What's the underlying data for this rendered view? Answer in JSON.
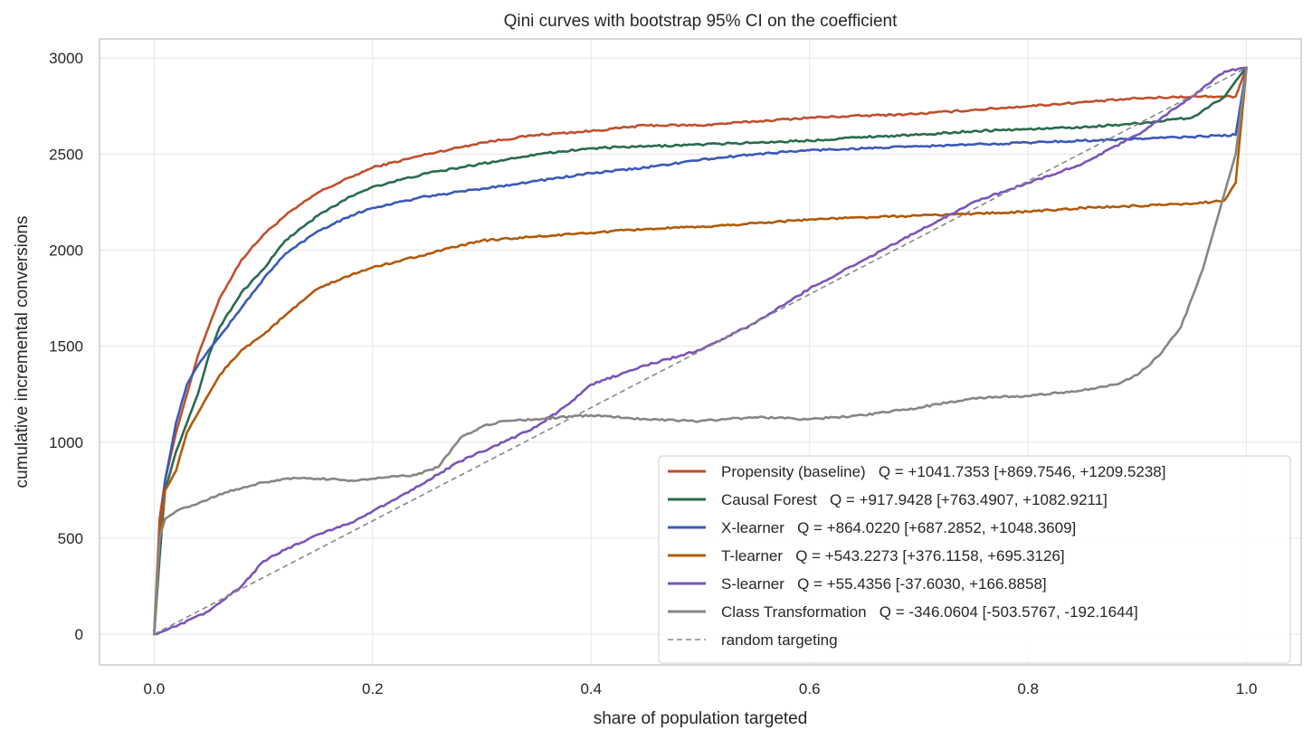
{
  "chart_data": {
    "type": "line",
    "title": "Qini curves with bootstrap 95% CI on the coefficient",
    "xlabel": "share of population targeted",
    "ylabel": "cumulative incremental conversions",
    "xlim": [
      -0.05,
      1.05
    ],
    "ylim": [
      -160,
      3100
    ],
    "xticks": [
      0.0,
      0.2,
      0.4,
      0.6,
      0.8,
      1.0
    ],
    "xtick_labels": [
      "0.0",
      "0.2",
      "0.4",
      "0.6",
      "0.8",
      "1.0"
    ],
    "yticks": [
      0,
      500,
      1000,
      1500,
      2000,
      2500,
      3000
    ],
    "ytick_labels": [
      "0",
      "500",
      "1000",
      "1500",
      "2000",
      "2500",
      "3000"
    ],
    "grid": true,
    "legend_position": "lower-right",
    "series": [
      {
        "name": "Propensity (baseline)   Q = +1041.7353 [+869.7546, +1209.5238]",
        "color": "#c0502d",
        "style": "solid",
        "x": [
          0,
          0.005,
          0.01,
          0.02,
          0.03,
          0.04,
          0.05,
          0.06,
          0.08,
          0.1,
          0.12,
          0.15,
          0.18,
          0.2,
          0.25,
          0.3,
          0.35,
          0.4,
          0.45,
          0.5,
          0.55,
          0.6,
          0.65,
          0.7,
          0.75,
          0.8,
          0.85,
          0.9,
          0.95,
          0.99,
          1.0
        ],
        "y": [
          0,
          600,
          800,
          1050,
          1250,
          1450,
          1600,
          1750,
          1950,
          2080,
          2180,
          2300,
          2380,
          2430,
          2500,
          2560,
          2600,
          2620,
          2650,
          2650,
          2670,
          2690,
          2700,
          2710,
          2730,
          2750,
          2770,
          2790,
          2800,
          2800,
          2950
        ]
      },
      {
        "name": "Causal Forest   Q = +917.9428 [+763.4907, +1082.9211]",
        "color": "#2a6b4e",
        "style": "solid",
        "x": [
          0,
          0.005,
          0.01,
          0.02,
          0.03,
          0.04,
          0.05,
          0.06,
          0.08,
          0.1,
          0.12,
          0.15,
          0.18,
          0.2,
          0.25,
          0.3,
          0.35,
          0.4,
          0.45,
          0.5,
          0.55,
          0.6,
          0.65,
          0.7,
          0.75,
          0.8,
          0.85,
          0.9,
          0.95,
          0.98,
          0.99,
          1.0
        ],
        "y": [
          0,
          400,
          750,
          950,
          1100,
          1250,
          1450,
          1600,
          1780,
          1900,
          2050,
          2180,
          2280,
          2330,
          2400,
          2450,
          2500,
          2530,
          2540,
          2550,
          2560,
          2570,
          2590,
          2600,
          2620,
          2630,
          2640,
          2660,
          2690,
          2800,
          2880,
          2950
        ]
      },
      {
        "name": "X-learner   Q = +864.0220 [+687.2852, +1048.3609]",
        "color": "#3a5ab8",
        "style": "solid",
        "x": [
          0,
          0.005,
          0.01,
          0.02,
          0.03,
          0.04,
          0.05,
          0.06,
          0.08,
          0.1,
          0.12,
          0.15,
          0.18,
          0.2,
          0.25,
          0.3,
          0.35,
          0.4,
          0.45,
          0.5,
          0.55,
          0.6,
          0.65,
          0.7,
          0.75,
          0.8,
          0.85,
          0.9,
          0.95,
          0.99,
          1.0
        ],
        "y": [
          0,
          500,
          800,
          1100,
          1300,
          1400,
          1480,
          1550,
          1700,
          1850,
          1980,
          2100,
          2180,
          2220,
          2280,
          2320,
          2360,
          2400,
          2430,
          2470,
          2500,
          2520,
          2530,
          2540,
          2550,
          2560,
          2570,
          2580,
          2590,
          2600,
          2950
        ]
      },
      {
        "name": "T-learner   Q = +543.2273 [+376.1158, +695.3126]",
        "color": "#b05a0a",
        "style": "solid",
        "x": [
          0,
          0.005,
          0.01,
          0.02,
          0.03,
          0.04,
          0.05,
          0.06,
          0.08,
          0.1,
          0.12,
          0.15,
          0.18,
          0.2,
          0.25,
          0.3,
          0.35,
          0.4,
          0.45,
          0.5,
          0.55,
          0.6,
          0.65,
          0.7,
          0.75,
          0.8,
          0.85,
          0.9,
          0.95,
          0.98,
          0.99,
          1.0
        ],
        "y": [
          0,
          500,
          750,
          850,
          1050,
          1150,
          1250,
          1350,
          1480,
          1560,
          1660,
          1800,
          1870,
          1910,
          1980,
          2050,
          2070,
          2090,
          2110,
          2120,
          2140,
          2160,
          2170,
          2180,
          2190,
          2200,
          2220,
          2230,
          2240,
          2260,
          2350,
          2950
        ]
      },
      {
        "name": "S-learner   Q = +55.4356 [-37.6030, +166.8858]",
        "color": "#7a55b8",
        "style": "solid",
        "x": [
          0,
          0.02,
          0.05,
          0.08,
          0.1,
          0.12,
          0.15,
          0.18,
          0.2,
          0.22,
          0.25,
          0.28,
          0.3,
          0.32,
          0.35,
          0.38,
          0.4,
          0.45,
          0.5,
          0.55,
          0.6,
          0.65,
          0.7,
          0.75,
          0.8,
          0.85,
          0.9,
          0.95,
          0.98,
          1.0
        ],
        "y": [
          0,
          40,
          120,
          250,
          380,
          440,
          520,
          580,
          640,
          700,
          800,
          900,
          950,
          1000,
          1080,
          1200,
          1300,
          1400,
          1480,
          1620,
          1800,
          1950,
          2100,
          2250,
          2350,
          2450,
          2600,
          2800,
          2930,
          2950
        ]
      },
      {
        "name": "Class Transformation   Q = -346.0604 [-503.5767, -192.1644]",
        "color": "#898682",
        "style": "solid",
        "x": [
          0,
          0.005,
          0.01,
          0.02,
          0.04,
          0.06,
          0.08,
          0.1,
          0.12,
          0.15,
          0.18,
          0.2,
          0.24,
          0.26,
          0.28,
          0.3,
          0.32,
          0.35,
          0.4,
          0.45,
          0.5,
          0.55,
          0.6,
          0.65,
          0.7,
          0.75,
          0.8,
          0.85,
          0.88,
          0.9,
          0.92,
          0.94,
          0.96,
          0.97,
          0.98,
          0.99,
          1.0
        ],
        "y": [
          0,
          500,
          600,
          640,
          680,
          730,
          760,
          790,
          810,
          810,
          800,
          810,
          830,
          870,
          1020,
          1080,
          1110,
          1120,
          1140,
          1120,
          1110,
          1130,
          1120,
          1140,
          1180,
          1230,
          1240,
          1270,
          1300,
          1350,
          1450,
          1600,
          1900,
          2100,
          2300,
          2500,
          2950
        ]
      },
      {
        "name": "random targeting",
        "color": "#888888",
        "style": "dashed",
        "x": [
          0,
          1.0
        ],
        "y": [
          0,
          2950
        ]
      }
    ]
  }
}
